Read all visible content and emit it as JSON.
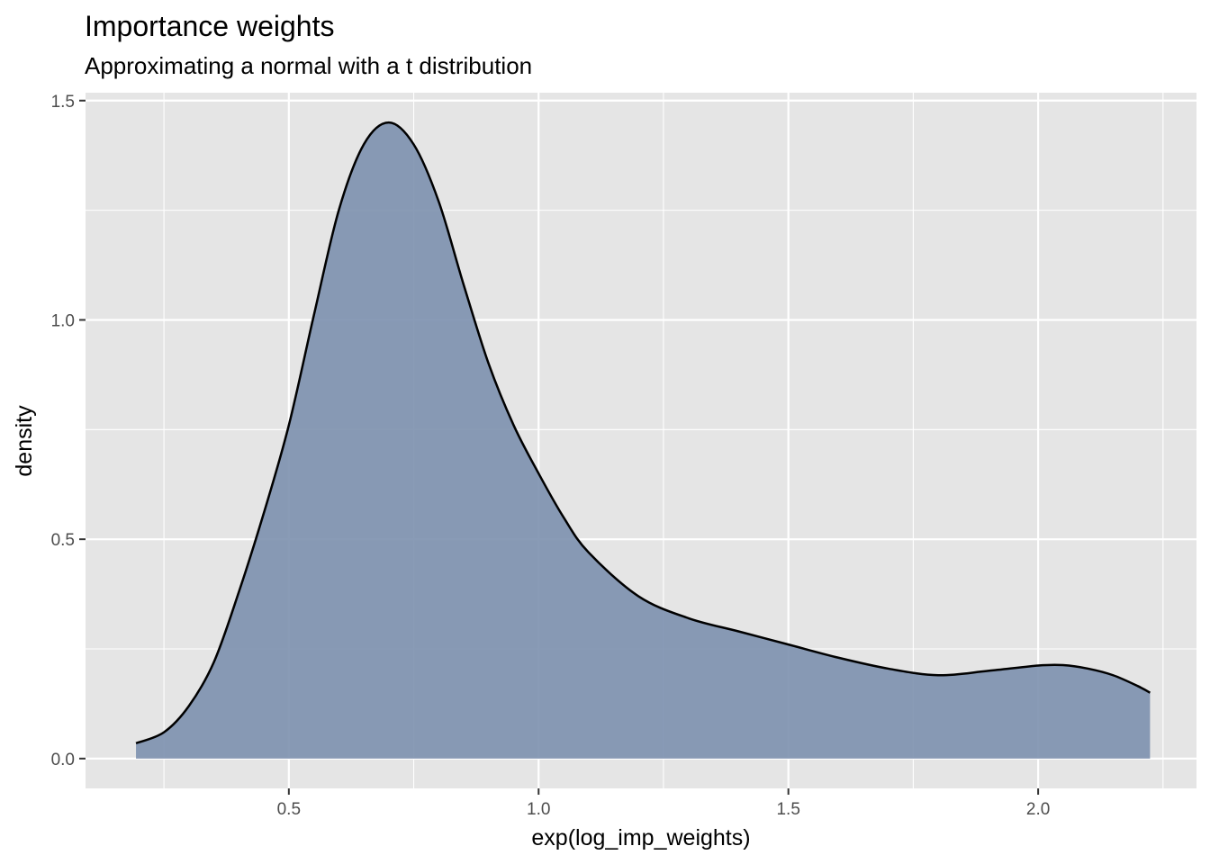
{
  "colors": {
    "panel_background": "#e5e5e5",
    "grid": "#ffffff",
    "fill": "#7f92b0",
    "outline": "#000000",
    "tick_label": "#4d4d4d"
  },
  "chart_data": {
    "type": "area",
    "title": "Importance weights",
    "subtitle": "Approximating a normal with a t distribution",
    "xlabel": "exp(log_imp_weights)",
    "ylabel": "density",
    "xlim": [
      0.093,
      2.317
    ],
    "ylim": [
      -0.068,
      1.518
    ],
    "x_ticks": [
      0.5,
      1.0,
      1.5,
      2.0
    ],
    "x_tick_labels": [
      "0.5",
      "1.0",
      "1.5",
      "2.0"
    ],
    "y_ticks": [
      0.0,
      0.5,
      1.0,
      1.5
    ],
    "y_tick_labels": [
      "0.0",
      "0.5",
      "1.0",
      "1.5"
    ],
    "grid": true,
    "legend": "none",
    "series": [
      {
        "x": [
          0.194,
          0.25,
          0.3,
          0.35,
          0.4,
          0.45,
          0.5,
          0.55,
          0.6,
          0.65,
          0.7,
          0.75,
          0.8,
          0.85,
          0.9,
          0.95,
          1.0,
          1.05,
          1.1,
          1.2,
          1.3,
          1.4,
          1.5,
          1.6,
          1.7,
          1.8,
          1.9,
          2.0,
          2.05,
          2.1,
          2.15,
          2.2,
          2.224
        ],
        "y": [
          0.035,
          0.06,
          0.12,
          0.22,
          0.38,
          0.56,
          0.76,
          1.01,
          1.25,
          1.4,
          1.45,
          1.4,
          1.27,
          1.08,
          0.9,
          0.76,
          0.65,
          0.55,
          0.47,
          0.37,
          0.32,
          0.29,
          0.26,
          0.23,
          0.205,
          0.19,
          0.2,
          0.212,
          0.213,
          0.205,
          0.19,
          0.165,
          0.15
        ]
      }
    ]
  }
}
